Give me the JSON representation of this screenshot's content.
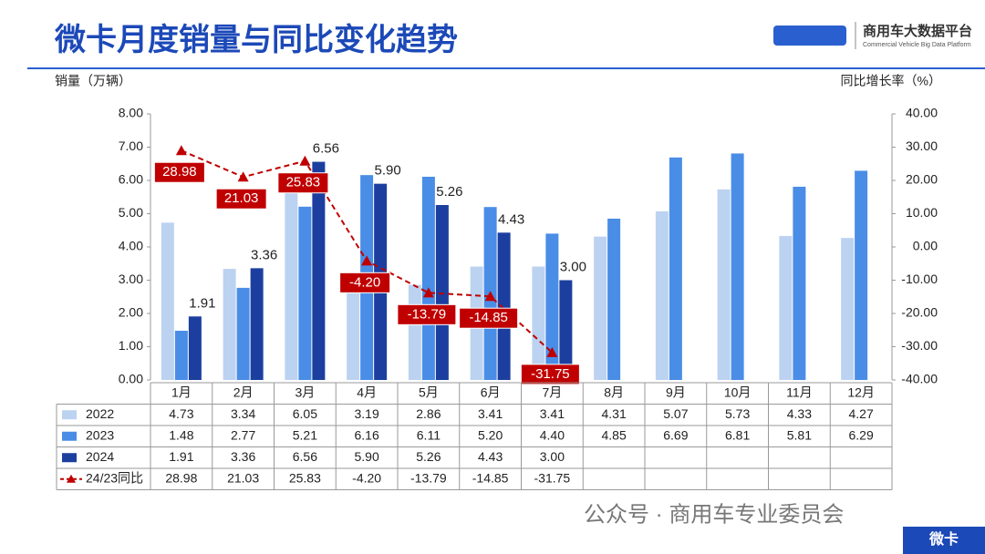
{
  "chart_data": {
    "type": "bar",
    "title": "微卡月度销量与同比变化趋势",
    "y_label": "销量（万辆）",
    "y2_label": "同比增长率（%）",
    "categories": [
      "1月",
      "2月",
      "3月",
      "4月",
      "5月",
      "6月",
      "7月",
      "8月",
      "9月",
      "10月",
      "11月",
      "12月"
    ],
    "series": [
      {
        "name": "2022",
        "color": "#bcd2f1",
        "values": [
          4.73,
          3.34,
          6.05,
          3.19,
          2.86,
          3.41,
          3.41,
          4.31,
          5.07,
          5.73,
          4.33,
          4.27
        ],
        "value_labels": [
          "4.73",
          "3.34",
          "6.05",
          "3.19",
          "2.86",
          "3.41",
          "3.41",
          "4.31",
          "5.07",
          "5.73",
          "4.33",
          "4.27"
        ]
      },
      {
        "name": "2023",
        "color": "#4a8de6",
        "values": [
          1.48,
          2.77,
          5.21,
          6.16,
          6.11,
          5.2,
          4.4,
          4.85,
          6.69,
          6.81,
          5.81,
          6.29
        ],
        "value_labels": [
          "1.48",
          "2.77",
          "5.21",
          "6.16",
          "6.11",
          "5.20",
          "4.40",
          "4.85",
          "6.69",
          "6.81",
          "5.81",
          "6.29"
        ]
      },
      {
        "name": "2024",
        "color": "#1c3f9f",
        "values": [
          1.91,
          3.36,
          6.56,
          5.9,
          5.26,
          4.43,
          3.0,
          null,
          null,
          null,
          null,
          null
        ],
        "value_labels": [
          "1.91",
          "3.36",
          "6.56",
          "5.90",
          "5.26",
          "4.43",
          "3.00",
          null,
          null,
          null,
          null,
          null
        ]
      },
      {
        "name": "24/23同比",
        "color": "#c00000",
        "type": "line",
        "axis": "y2",
        "values": [
          28.98,
          21.03,
          25.83,
          -4.2,
          -13.79,
          -14.85,
          -31.75,
          null,
          null,
          null,
          null,
          null
        ],
        "value_labels": [
          "28.98",
          "21.03",
          "25.83",
          "-4.20",
          "-13.79",
          "-14.85",
          "-31.75",
          null,
          null,
          null,
          null,
          null
        ]
      }
    ],
    "ylim": [
      0,
      8
    ],
    "yticks": [
      {
        "value": 0,
        "label": "0.00"
      },
      {
        "value": 1,
        "label": "1.00"
      },
      {
        "value": 2,
        "label": "2.00"
      },
      {
        "value": 3,
        "label": "3.00"
      },
      {
        "value": 4,
        "label": "4.00"
      },
      {
        "value": 5,
        "label": "5.00"
      },
      {
        "value": 6,
        "label": "6.00"
      },
      {
        "value": 7,
        "label": "7.00"
      },
      {
        "value": 8,
        "label": "8.00"
      }
    ],
    "y2lim": [
      -40,
      40
    ],
    "y2ticks": [
      {
        "value": -40,
        "label": "-40.00"
      },
      {
        "value": -30,
        "label": "-30.00"
      },
      {
        "value": -20,
        "label": "-20.00"
      },
      {
        "value": -10,
        "label": "-10.00"
      },
      {
        "value": 0,
        "label": "0.00"
      },
      {
        "value": 10,
        "label": "10.00"
      },
      {
        "value": 20,
        "label": "20.00"
      },
      {
        "value": 30,
        "label": "30.00"
      },
      {
        "value": 40,
        "label": "40.00"
      }
    ]
  },
  "logo": {
    "name": "商用车大数据平台",
    "subtitle": "Commercial Vehicle Big Data Platform"
  },
  "footer": {
    "source": "公众号 · 商用车专业委员会",
    "tag": "微卡"
  }
}
